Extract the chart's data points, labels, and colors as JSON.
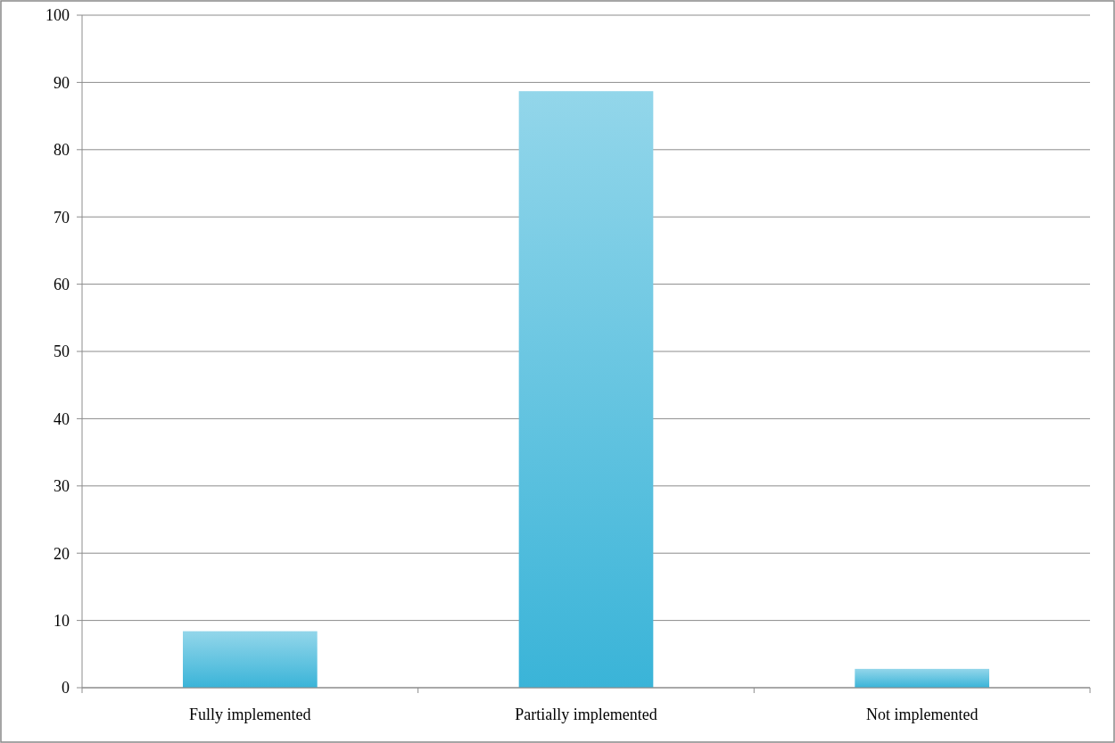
{
  "chart_data": {
    "type": "bar",
    "categories": [
      "Fully implemented",
      "Partially implemented",
      "Not implemented"
    ],
    "values": [
      8.4,
      88.7,
      2.8
    ],
    "color": "#3ab4d8",
    "ylim": [
      0,
      100
    ],
    "yticks": [
      0,
      10,
      20,
      30,
      40,
      50,
      60,
      70,
      80,
      90,
      100
    ],
    "grid": "y"
  }
}
